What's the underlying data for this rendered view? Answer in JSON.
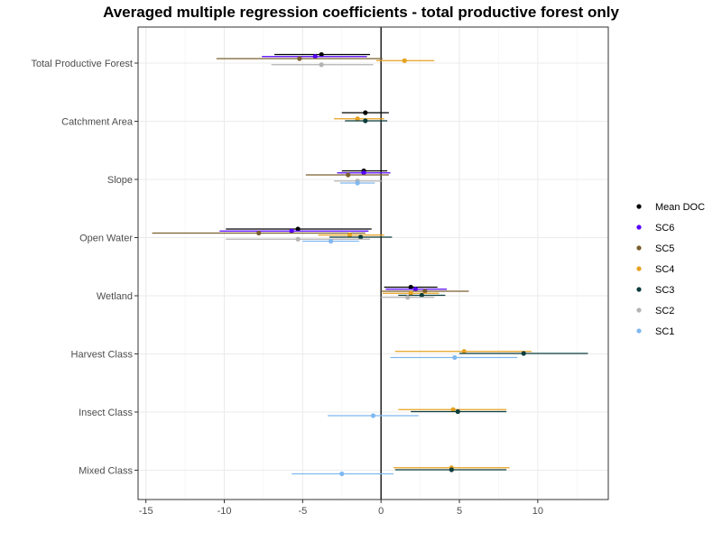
{
  "chart_data": {
    "type": "scatter",
    "title": "Averaged multiple regression coefficients - total productive forest only",
    "xlabel": "",
    "ylabel": "",
    "xlim": [
      -15.5,
      14.5
    ],
    "x_ticks": [
      -15,
      -10,
      -5,
      0,
      5,
      10
    ],
    "grid": true,
    "legend_position": "right",
    "reference_line_x": 0,
    "categories": [
      "Total Productive Forest",
      "Catchment Area",
      "Slope",
      "Open Water",
      "Wetland",
      "Harvest Class",
      "Insect Class",
      "Mixed Class"
    ],
    "series": [
      {
        "name": "Mean DOC",
        "color": "#000000",
        "offset": -0.5,
        "points": [
          {
            "category": "Total Productive Forest",
            "x": -3.8,
            "lo": -6.8,
            "hi": -0.7
          },
          {
            "category": "Catchment Area",
            "x": -1.0,
            "lo": -2.5,
            "hi": 0.5
          },
          {
            "category": "Slope",
            "x": -1.1,
            "lo": -2.5,
            "hi": 0.4
          },
          {
            "category": "Open Water",
            "x": -5.3,
            "lo": -9.9,
            "hi": -0.6
          },
          {
            "category": "Wetland",
            "x": 1.9,
            "lo": 0.2,
            "hi": 3.6
          }
        ]
      },
      {
        "name": "SC6",
        "color": "#5500ff",
        "offset": -0.25,
        "points": [
          {
            "category": "Total Productive Forest",
            "x": -4.2,
            "lo": -7.6,
            "hi": -0.9
          },
          {
            "category": "Slope",
            "x": -1.1,
            "lo": -2.8,
            "hi": 0.6
          },
          {
            "category": "Open Water",
            "x": -5.7,
            "lo": -10.3,
            "hi": -0.8
          },
          {
            "category": "Wetland",
            "x": 2.2,
            "lo": 0.3,
            "hi": 4.2
          }
        ]
      },
      {
        "name": "SC5",
        "color": "#7a5f2e",
        "offset": 0,
        "points": [
          {
            "category": "Total Productive Forest",
            "x": -5.2,
            "lo": -10.5,
            "hi": 0.1
          },
          {
            "category": "Slope",
            "x": -2.1,
            "lo": -4.8,
            "hi": 0.5
          },
          {
            "category": "Open Water",
            "x": -7.8,
            "lo": -14.6,
            "hi": -1.0
          },
          {
            "category": "Wetland",
            "x": 2.8,
            "lo": 0.0,
            "hi": 5.6
          }
        ]
      },
      {
        "name": "SC4",
        "color": "#e6a11f",
        "offset": 0.25,
        "points": [
          {
            "category": "Total Productive Forest",
            "x": 1.5,
            "lo": -0.3,
            "hi": 3.4
          },
          {
            "category": "Catchment Area",
            "x": -1.5,
            "lo": -3.0,
            "hi": 0.2
          },
          {
            "category": "Open Water",
            "x": -2.0,
            "lo": -4.0,
            "hi": 0.2
          },
          {
            "category": "Wetland",
            "x": 1.9,
            "lo": 0.1,
            "hi": 3.7
          },
          {
            "category": "Harvest Class",
            "x": 5.3,
            "lo": 0.9,
            "hi": 9.6
          },
          {
            "category": "Insect Class",
            "x": 4.6,
            "lo": 1.1,
            "hi": 8.0
          },
          {
            "category": "Mixed Class",
            "x": 4.5,
            "lo": 0.8,
            "hi": 8.2
          }
        ]
      },
      {
        "name": "SC3",
        "color": "#0d3d3d",
        "offset": 0.5,
        "points": [
          {
            "category": "Catchment Area",
            "x": -1.0,
            "lo": -2.3,
            "hi": 0.4
          },
          {
            "category": "Open Water",
            "x": -1.3,
            "lo": -3.3,
            "hi": 0.7
          },
          {
            "category": "Wetland",
            "x": 2.6,
            "lo": 1.1,
            "hi": 4.1
          },
          {
            "category": "Harvest Class",
            "x": 9.1,
            "lo": 5.0,
            "hi": 13.2
          },
          {
            "category": "Insect Class",
            "x": 4.9,
            "lo": 1.9,
            "hi": 8.0
          },
          {
            "category": "Mixed Class",
            "x": 4.5,
            "lo": 0.9,
            "hi": 8.0
          }
        ]
      },
      {
        "name": "SC2",
        "color": "#b3b3b3",
        "offset": 0.75,
        "points": [
          {
            "category": "Total Productive Forest",
            "x": -3.8,
            "lo": -7.0,
            "hi": -0.5
          },
          {
            "category": "Slope",
            "x": -1.5,
            "lo": -3.0,
            "hi": 0.1
          },
          {
            "category": "Open Water",
            "x": -5.3,
            "lo": -9.9,
            "hi": -0.7
          },
          {
            "category": "Wetland",
            "x": 1.7,
            "lo": 0.0,
            "hi": 3.4
          }
        ]
      },
      {
        "name": "SC1",
        "color": "#80b8f0",
        "offset": 1.0,
        "points": [
          {
            "category": "Slope",
            "x": -1.5,
            "lo": -2.6,
            "hi": -0.4
          },
          {
            "category": "Open Water",
            "x": -3.2,
            "lo": -5.0,
            "hi": -1.4
          },
          {
            "category": "Harvest Class",
            "x": 4.7,
            "lo": 0.6,
            "hi": 8.7
          },
          {
            "category": "Insect Class",
            "x": -0.5,
            "lo": -3.4,
            "hi": 2.4
          },
          {
            "category": "Mixed Class",
            "x": -2.5,
            "lo": -5.7,
            "hi": 0.8
          }
        ]
      }
    ],
    "legend_order": [
      "Mean DOC",
      "SC6",
      "SC5",
      "SC4",
      "SC3",
      "SC2",
      "SC1"
    ]
  }
}
